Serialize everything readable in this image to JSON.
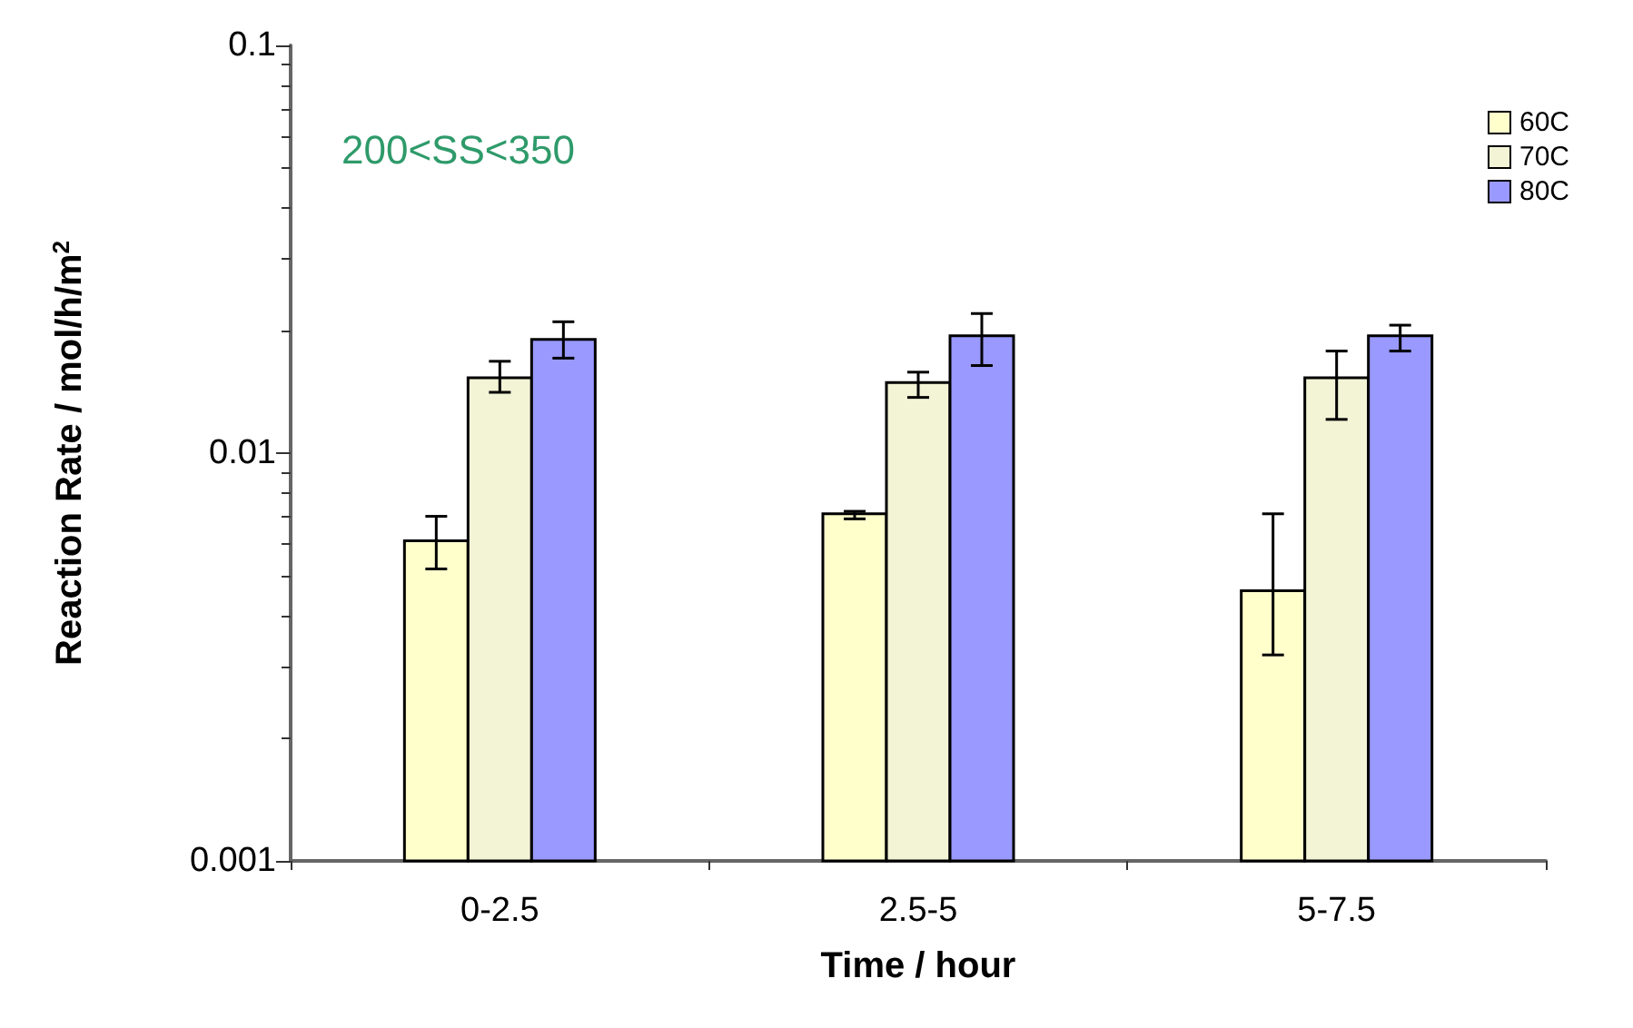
{
  "chart_data": {
    "type": "bar",
    "xlabel": "Time / hour",
    "ylabel": "Reaction Rate / mol/h/m$^{2}$",
    "categories": [
      "0-2.5",
      "2.5-5",
      "5-7.5"
    ],
    "series": [
      {
        "name": "60C",
        "color": "#ffffcc",
        "values": [
          0.0061,
          0.0071,
          0.0046
        ],
        "errors": [
          [
            0.0052,
            0.007
          ],
          [
            0.0069,
            0.0072
          ],
          [
            0.0032,
            0.0071
          ]
        ]
      },
      {
        "name": "70C",
        "color": "#f3f3d6",
        "values": [
          0.0153,
          0.0149,
          0.0153
        ],
        "errors": [
          [
            0.0141,
            0.0168
          ],
          [
            0.0137,
            0.0158
          ],
          [
            0.0121,
            0.0178
          ]
        ]
      },
      {
        "name": "80C",
        "color": "#9999ff",
        "values": [
          0.019,
          0.0194,
          0.0194
        ],
        "errors": [
          [
            0.0171,
            0.021
          ],
          [
            0.0164,
            0.022
          ],
          [
            0.0178,
            0.0206
          ]
        ]
      }
    ],
    "ylim": [
      0.001,
      0.1
    ],
    "yticks": [
      0.001,
      0.01,
      0.1
    ],
    "log": true,
    "grid": false,
    "legend": "top right",
    "annotations": [
      "200<SS<350"
    ]
  }
}
